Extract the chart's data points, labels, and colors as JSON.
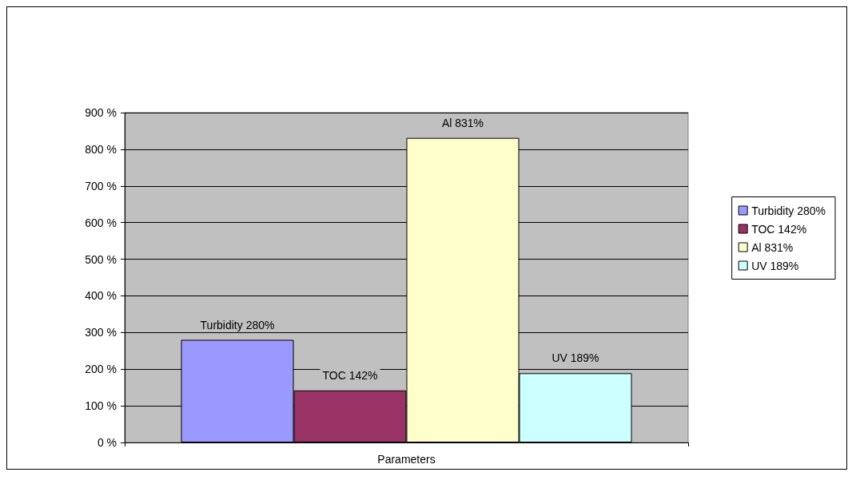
{
  "chart_data": {
    "type": "bar",
    "categories": [
      "Parameters"
    ],
    "series": [
      {
        "name": "Turbidity 280%",
        "color": "#9999ff",
        "values": [
          280
        ],
        "value_labels": [
          "Turbidity 280%"
        ]
      },
      {
        "name": "TOC 142%",
        "color": "#993366",
        "values": [
          142
        ],
        "value_labels": [
          "TOC 142%"
        ]
      },
      {
        "name": "Al 831%",
        "color": "#ffffcc",
        "values": [
          831
        ],
        "value_labels": [
          "Al 831%"
        ]
      },
      {
        "name": "UV 189%",
        "color": "#ccffff",
        "values": [
          189
        ],
        "value_labels": [
          "UV 189%"
        ]
      }
    ],
    "ylim": [
      0,
      900
    ],
    "yticks": [
      {
        "value": 0,
        "label": "0 %"
      },
      {
        "value": 100,
        "label": "100 %"
      },
      {
        "value": 200,
        "label": "200 %"
      },
      {
        "value": 300,
        "label": "300 %"
      },
      {
        "value": 400,
        "label": "400 %"
      },
      {
        "value": 500,
        "label": "500 %"
      },
      {
        "value": 600,
        "label": "600 %"
      },
      {
        "value": 700,
        "label": "700 %"
      },
      {
        "value": 800,
        "label": "800 %"
      },
      {
        "value": 900,
        "label": "900 %"
      }
    ],
    "grid": "y",
    "legend": "right"
  }
}
